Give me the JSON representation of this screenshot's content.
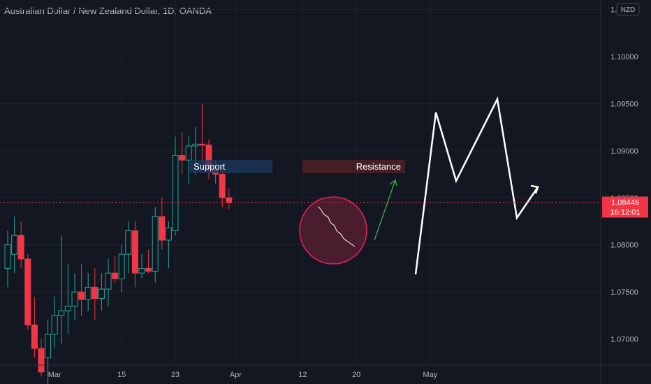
{
  "header": {
    "title": "Australian Dollar / New Zealand Dollar, 1D, OANDA",
    "currency_badge": "NZD"
  },
  "price_tag": {
    "price": "1.08446",
    "countdown": "16:12:01",
    "color": "#f23645"
  },
  "colors": {
    "background": "#131722",
    "up": "#26a69a",
    "down": "#f23645",
    "grid": "#1e222d",
    "support_box": "#1e3a5f",
    "resistance_box": "#4a1f24",
    "circle_fill": "#5c1f33",
    "circle_stroke": "#e91e63",
    "projection": "#ffffff",
    "arrow": "#4caf50"
  },
  "annotations": {
    "support_label": "Support",
    "resistance_label": "Resistance"
  },
  "chart_data": {
    "type": "candlestick",
    "symbol": "AUDNZD",
    "interval": "1D",
    "ylim": [
      1.0673,
      1.106
    ],
    "y_ticks": [
      "1.10500",
      "1.10000",
      "1.09500",
      "1.09000",
      "1.08500",
      "1.08000",
      "1.07500",
      "1.07000"
    ],
    "y_tick_values": [
      1.105,
      1.1,
      1.095,
      1.09,
      1.085,
      1.08,
      1.075,
      1.07
    ],
    "x_ticks": [
      {
        "label": "Mar",
        "day": 7
      },
      {
        "label": "15",
        "day": 17
      },
      {
        "label": "23",
        "day": 25
      },
      {
        "label": "Apr",
        "day": 34
      },
      {
        "label": "12",
        "day": 44
      },
      {
        "label": "20",
        "day": 52
      },
      {
        "label": "May",
        "day": 63
      }
    ],
    "candles": [
      {
        "day": 0,
        "o": 1.0775,
        "h": 1.0815,
        "l": 1.0755,
        "c": 1.08
      },
      {
        "day": 1,
        "o": 1.079,
        "h": 1.083,
        "l": 1.077,
        "c": 1.081
      },
      {
        "day": 2,
        "o": 1.081,
        "h": 1.0825,
        "l": 1.0775,
        "c": 1.0785
      },
      {
        "day": 3,
        "o": 1.0785,
        "h": 1.079,
        "l": 1.071,
        "c": 1.0715
      },
      {
        "day": 4,
        "o": 1.0715,
        "h": 1.0745,
        "l": 1.068,
        "c": 1.069
      },
      {
        "day": 5,
        "o": 1.069,
        "h": 1.07,
        "l": 1.066,
        "c": 1.0665
      },
      {
        "day": 6,
        "o": 1.068,
        "h": 1.072,
        "l": 1.065,
        "c": 1.0705
      },
      {
        "day": 7,
        "o": 1.0705,
        "h": 1.0745,
        "l": 1.069,
        "c": 1.0725
      },
      {
        "day": 8,
        "o": 1.0725,
        "h": 1.081,
        "l": 1.0695,
        "c": 1.073
      },
      {
        "day": 9,
        "o": 1.073,
        "h": 1.078,
        "l": 1.0705,
        "c": 1.0735
      },
      {
        "day": 10,
        "o": 1.0735,
        "h": 1.077,
        "l": 1.072,
        "c": 1.075
      },
      {
        "day": 11,
        "o": 1.075,
        "h": 1.078,
        "l": 1.0725,
        "c": 1.0742
      },
      {
        "day": 12,
        "o": 1.0742,
        "h": 1.077,
        "l": 1.073,
        "c": 1.0755
      },
      {
        "day": 13,
        "o": 1.0755,
        "h": 1.0775,
        "l": 1.072,
        "c": 1.0743
      },
      {
        "day": 14,
        "o": 1.0743,
        "h": 1.077,
        "l": 1.073,
        "c": 1.0753
      },
      {
        "day": 15,
        "o": 1.0753,
        "h": 1.0785,
        "l": 1.0735,
        "c": 1.077
      },
      {
        "day": 16,
        "o": 1.077,
        "h": 1.0788,
        "l": 1.076,
        "c": 1.0764
      },
      {
        "day": 17,
        "o": 1.0764,
        "h": 1.08,
        "l": 1.075,
        "c": 1.079
      },
      {
        "day": 18,
        "o": 1.079,
        "h": 1.0825,
        "l": 1.077,
        "c": 1.0815
      },
      {
        "day": 19,
        "o": 1.0815,
        "h": 1.0825,
        "l": 1.0755,
        "c": 1.077
      },
      {
        "day": 20,
        "o": 1.077,
        "h": 1.079,
        "l": 1.0765,
        "c": 1.0775
      },
      {
        "day": 21,
        "o": 1.0775,
        "h": 1.0795,
        "l": 1.077,
        "c": 1.0772
      },
      {
        "day": 22,
        "o": 1.0772,
        "h": 1.084,
        "l": 1.076,
        "c": 1.083
      },
      {
        "day": 23,
        "o": 1.083,
        "h": 1.085,
        "l": 1.0795,
        "c": 1.0805
      },
      {
        "day": 24,
        "o": 1.0805,
        "h": 1.0825,
        "l": 1.0775,
        "c": 1.0818
      },
      {
        "day": 25,
        "o": 1.0815,
        "h": 1.0915,
        "l": 1.081,
        "c": 1.0895
      },
      {
        "day": 26,
        "o": 1.0895,
        "h": 1.092,
        "l": 1.0875,
        "c": 1.089
      },
      {
        "day": 27,
        "o": 1.089,
        "h": 1.0915,
        "l": 1.0865,
        "c": 1.0905
      },
      {
        "day": 28,
        "o": 1.0905,
        "h": 1.0925,
        "l": 1.0875,
        "c": 1.0907
      },
      {
        "day": 29,
        "o": 1.0907,
        "h": 1.095,
        "l": 1.0885,
        "c": 1.0906
      },
      {
        "day": 30,
        "o": 1.0906,
        "h": 1.0912,
        "l": 1.087,
        "c": 1.088
      },
      {
        "day": 31,
        "o": 1.088,
        "h": 1.089,
        "l": 1.0865,
        "c": 1.0875
      },
      {
        "day": 32,
        "o": 1.0875,
        "h": 1.0885,
        "l": 1.084,
        "c": 1.085
      },
      {
        "day": 33,
        "o": 1.085,
        "h": 1.086,
        "l": 1.0838,
        "c": 1.0845
      }
    ]
  }
}
